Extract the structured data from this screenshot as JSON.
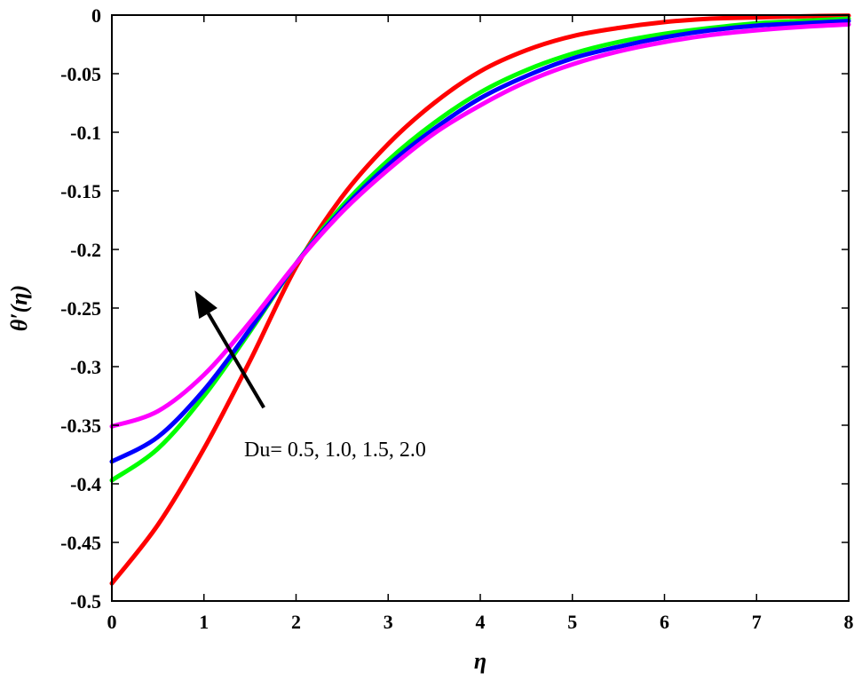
{
  "chart_data": {
    "type": "line",
    "title": "",
    "xlabel": "η",
    "ylabel": "θ′(η)",
    "xlim": [
      0,
      8
    ],
    "ylim": [
      -0.5,
      0
    ],
    "xticks": [
      0,
      1,
      2,
      3,
      4,
      5,
      6,
      7,
      8
    ],
    "xtick_labels": [
      "0",
      "1",
      "2",
      "3",
      "4",
      "5",
      "6",
      "7",
      "8"
    ],
    "yticks": [
      0,
      -0.05,
      -0.1,
      -0.15,
      -0.2,
      -0.25,
      -0.3,
      -0.35,
      -0.4,
      -0.45,
      -0.5
    ],
    "ytick_labels": [
      "0",
      "-0.05",
      "-0.1",
      "-0.15",
      "-0.2",
      "-0.25",
      "-0.3",
      "-0.35",
      "-0.4",
      "-0.45",
      "-0.5"
    ],
    "grid": false,
    "x": [
      0,
      0.5,
      1,
      1.5,
      2,
      2.5,
      3,
      3.5,
      4,
      4.5,
      5,
      5.5,
      6,
      6.5,
      7,
      7.5,
      8
    ],
    "series": [
      {
        "color": "#ff0000",
        "values": [
          -0.485,
          -0.435,
          -0.37,
          -0.295,
          -0.215,
          -0.155,
          -0.11,
          -0.075,
          -0.048,
          -0.03,
          -0.018,
          -0.011,
          -0.006,
          -0.003,
          -0.002,
          -0.001,
          -0.0005
        ]
      },
      {
        "color": "#00ff00",
        "values": [
          -0.397,
          -0.37,
          -0.325,
          -0.27,
          -0.212,
          -0.163,
          -0.124,
          -0.092,
          -0.066,
          -0.047,
          -0.033,
          -0.023,
          -0.016,
          -0.011,
          -0.007,
          -0.005,
          -0.003
        ]
      },
      {
        "color": "#0000ff",
        "values": [
          -0.381,
          -0.36,
          -0.32,
          -0.268,
          -0.212,
          -0.166,
          -0.128,
          -0.097,
          -0.071,
          -0.052,
          -0.037,
          -0.027,
          -0.019,
          -0.013,
          -0.009,
          -0.007,
          -0.005
        ]
      },
      {
        "color": "#ff00ff",
        "values": [
          -0.351,
          -0.338,
          -0.307,
          -0.262,
          -0.212,
          -0.168,
          -0.132,
          -0.101,
          -0.077,
          -0.057,
          -0.042,
          -0.031,
          -0.023,
          -0.017,
          -0.013,
          -0.01,
          -0.008
        ]
      }
    ],
    "annotation": {
      "text": "Du= 0.5, 1.0, 1.5, 2.0",
      "arrow_from": [
        1.65,
        -0.335
      ],
      "arrow_to": [
        0.9,
        -0.235
      ]
    }
  }
}
